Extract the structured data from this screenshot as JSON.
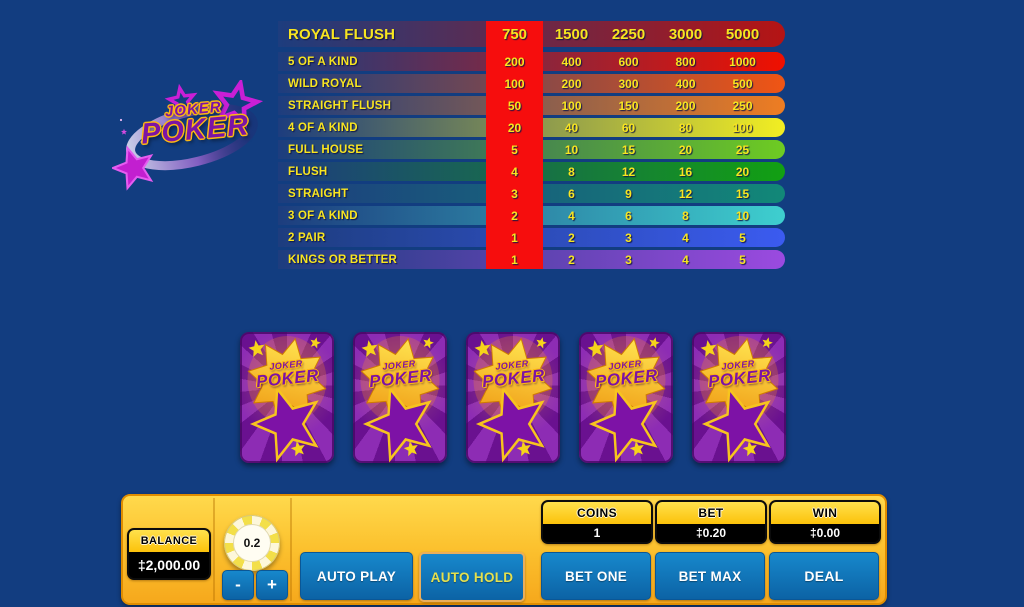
{
  "app": {
    "background": "#123d80",
    "title": "Joker Poker"
  },
  "logo": {
    "line1": "JOKER",
    "line2": "POKER"
  },
  "paytable": {
    "color_from": "#1d3d7e",
    "highlight_color": "#f60d0d",
    "highlighted_column": 1,
    "rows": [
      {
        "label": "ROYAL FLUSH",
        "values": [
          "750",
          "1500",
          "2250",
          "3000",
          "5000"
        ],
        "color": "#b51414"
      },
      {
        "label": "5 OF A KIND",
        "values": [
          "200",
          "400",
          "600",
          "800",
          "1000"
        ],
        "color": "#f01000"
      },
      {
        "label": "WILD ROYAL",
        "values": [
          "100",
          "200",
          "300",
          "400",
          "500"
        ],
        "color": "#f05514"
      },
      {
        "label": "STRAIGHT FLUSH",
        "values": [
          "50",
          "100",
          "150",
          "200",
          "250"
        ],
        "color": "#ee7d22"
      },
      {
        "label": "4 OF A KIND",
        "values": [
          "20",
          "40",
          "60",
          "80",
          "100"
        ],
        "color": "#f2ee22"
      },
      {
        "label": "FULL HOUSE",
        "values": [
          "5",
          "10",
          "15",
          "20",
          "25"
        ],
        "color": "#6ecc22"
      },
      {
        "label": "FLUSH",
        "values": [
          "4",
          "8",
          "12",
          "16",
          "20"
        ],
        "color": "#12a012"
      },
      {
        "label": "STRAIGHT",
        "values": [
          "3",
          "6",
          "9",
          "12",
          "15"
        ],
        "color": "#128878"
      },
      {
        "label": "3 OF A KIND",
        "values": [
          "2",
          "4",
          "6",
          "8",
          "10"
        ],
        "color": "#3ecfcf"
      },
      {
        "label": "2 PAIR",
        "values": [
          "1",
          "2",
          "3",
          "4",
          "5"
        ],
        "color": "#3b5bf0"
      },
      {
        "label": "KINGS OR BETTER",
        "values": [
          "1",
          "2",
          "3",
          "4",
          "5"
        ],
        "color": "#9b4ae0"
      }
    ]
  },
  "cards": {
    "count": 5,
    "label_top": "JOKER",
    "label_bottom": "POKER"
  },
  "controls": {
    "balance": {
      "label": "BALANCE",
      "value": "‡2,000.00"
    },
    "chip": {
      "value": "0.2"
    },
    "decrease_label": "-",
    "increase_label": "+",
    "auto_play_label": "AUTO PLAY",
    "auto_hold_label": "AUTO HOLD",
    "coins": {
      "label": "COINS",
      "value": "1"
    },
    "bet": {
      "label": "BET",
      "value": "‡0.20"
    },
    "win": {
      "label": "WIN",
      "value": "‡0.00"
    },
    "bet_one_label": "BET ONE",
    "bet_max_label": "BET MAX",
    "deal_label": "DEAL",
    "button_color": "#0c63a5",
    "bar_color": "#fcc330"
  }
}
